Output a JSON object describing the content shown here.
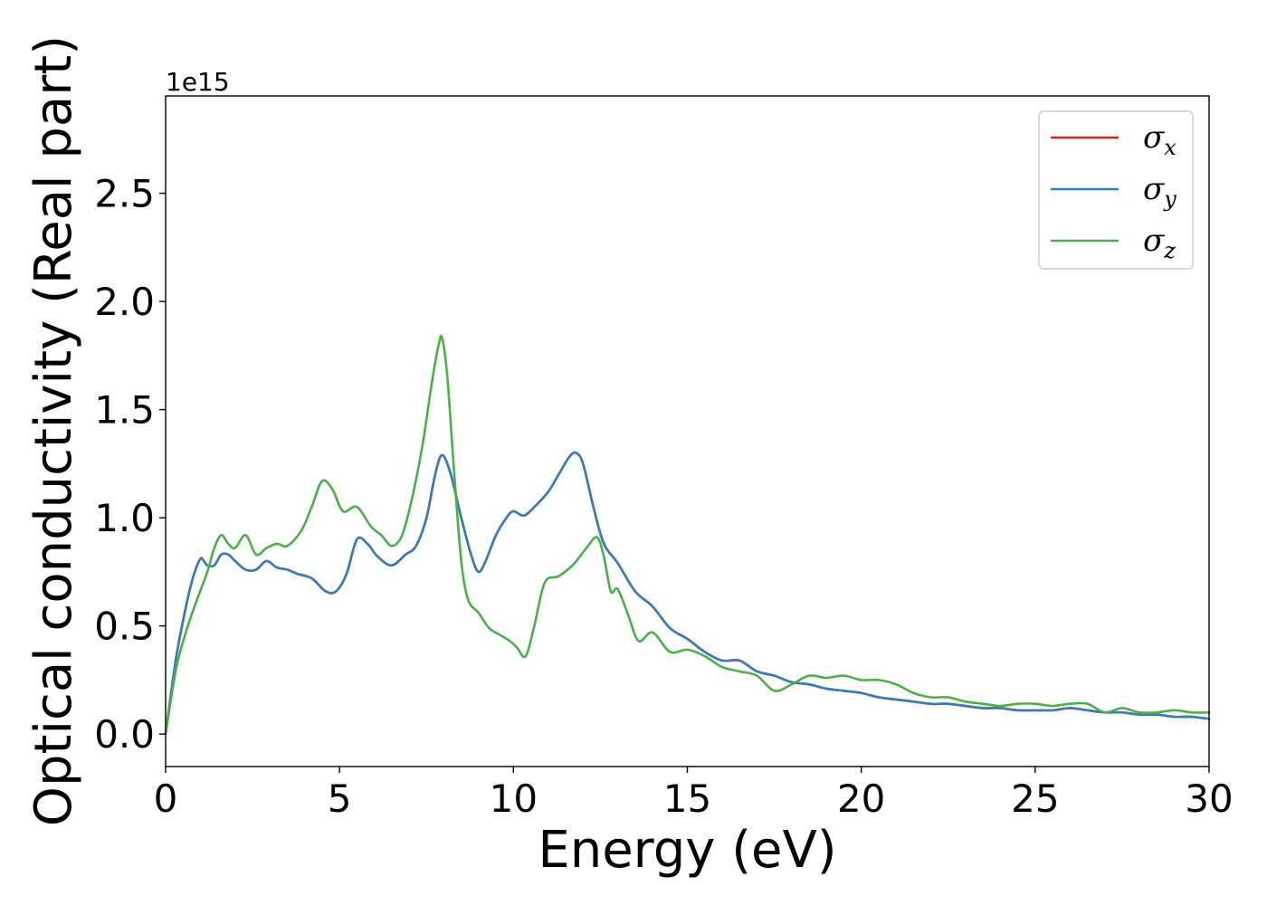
{
  "chart_data": {
    "type": "line",
    "title": "",
    "xlabel": "Energy (eV)",
    "ylabel": "Optical conductivity (Real part)",
    "y_offset_text": "1e15",
    "xlim": [
      0,
      30
    ],
    "ylim": [
      -0.15,
      2.95
    ],
    "x_ticks": [
      0,
      5,
      10,
      15,
      20,
      25,
      30
    ],
    "x_tick_labels": [
      "0",
      "5",
      "10",
      "15",
      "20",
      "25",
      "30"
    ],
    "y_ticks": [
      0.0,
      0.5,
      1.0,
      1.5,
      2.0,
      2.5
    ],
    "y_tick_labels": [
      "0.0",
      "0.5",
      "1.0",
      "1.5",
      "2.0",
      "2.5"
    ],
    "grid": false,
    "legend_position": "top-right",
    "series": [
      {
        "name": "σx",
        "label_base": "σ",
        "label_sub": "x",
        "color": "#e41a1c",
        "x": [
          0,
          0.3,
          0.6,
          0.8,
          1.0,
          1.1,
          1.2,
          1.4,
          1.6,
          1.8,
          2.0,
          2.3,
          2.6,
          2.9,
          3.2,
          3.5,
          3.8,
          4.2,
          4.6,
          4.9,
          5.2,
          5.5,
          5.8,
          6.1,
          6.5,
          6.9,
          7.2,
          7.5,
          7.75,
          7.95,
          8.2,
          8.5,
          8.8,
          9.0,
          9.2,
          9.5,
          9.8,
          10.0,
          10.3,
          10.6,
          11.0,
          11.3,
          11.6,
          11.8,
          12.0,
          12.3,
          12.6,
          13.0,
          13.5,
          14.0,
          14.5,
          15.0,
          15.5,
          16.0,
          16.5,
          17.0,
          17.5,
          18.0,
          18.5,
          19.0,
          19.5,
          20.0,
          20.5,
          21.0,
          21.5,
          22.0,
          22.5,
          23.0,
          23.5,
          24.0,
          24.5,
          25.0,
          25.5,
          26.0,
          26.5,
          27.0,
          27.5,
          28.0,
          28.5,
          29.0,
          29.5,
          30.0
        ],
        "values": [
          0,
          0.35,
          0.6,
          0.73,
          0.81,
          0.8,
          0.78,
          0.78,
          0.83,
          0.83,
          0.8,
          0.76,
          0.76,
          0.8,
          0.77,
          0.76,
          0.74,
          0.72,
          0.66,
          0.66,
          0.74,
          0.9,
          0.88,
          0.82,
          0.78,
          0.83,
          0.87,
          1.0,
          1.2,
          1.29,
          1.2,
          1.0,
          0.82,
          0.75,
          0.8,
          0.92,
          1.0,
          1.03,
          1.01,
          1.05,
          1.12,
          1.2,
          1.28,
          1.3,
          1.25,
          1.05,
          0.88,
          0.79,
          0.66,
          0.59,
          0.49,
          0.44,
          0.38,
          0.34,
          0.34,
          0.29,
          0.27,
          0.24,
          0.23,
          0.21,
          0.2,
          0.19,
          0.17,
          0.16,
          0.15,
          0.14,
          0.14,
          0.13,
          0.12,
          0.12,
          0.11,
          0.11,
          0.11,
          0.12,
          0.11,
          0.1,
          0.1,
          0.09,
          0.09,
          0.08,
          0.08,
          0.07
        ]
      },
      {
        "name": "σy",
        "label_base": "σ",
        "label_sub": "y",
        "color": "#377eb8",
        "x": [
          0,
          0.3,
          0.6,
          0.8,
          1.0,
          1.1,
          1.2,
          1.4,
          1.6,
          1.8,
          2.0,
          2.3,
          2.6,
          2.9,
          3.2,
          3.5,
          3.8,
          4.2,
          4.6,
          4.9,
          5.2,
          5.5,
          5.8,
          6.1,
          6.5,
          6.9,
          7.2,
          7.5,
          7.75,
          7.95,
          8.2,
          8.5,
          8.8,
          9.0,
          9.2,
          9.5,
          9.8,
          10.0,
          10.3,
          10.6,
          11.0,
          11.3,
          11.6,
          11.8,
          12.0,
          12.3,
          12.6,
          13.0,
          13.5,
          14.0,
          14.5,
          15.0,
          15.5,
          16.0,
          16.5,
          17.0,
          17.5,
          18.0,
          18.5,
          19.0,
          19.5,
          20.0,
          20.5,
          21.0,
          21.5,
          22.0,
          22.5,
          23.0,
          23.5,
          24.0,
          24.5,
          25.0,
          25.5,
          26.0,
          26.5,
          27.0,
          27.5,
          28.0,
          28.5,
          29.0,
          29.5,
          30.0
        ],
        "values": [
          0,
          0.35,
          0.6,
          0.73,
          0.81,
          0.8,
          0.78,
          0.78,
          0.83,
          0.83,
          0.8,
          0.76,
          0.76,
          0.8,
          0.77,
          0.76,
          0.74,
          0.72,
          0.66,
          0.66,
          0.74,
          0.9,
          0.88,
          0.82,
          0.78,
          0.83,
          0.87,
          1.0,
          1.2,
          1.29,
          1.2,
          1.0,
          0.82,
          0.75,
          0.8,
          0.92,
          1.0,
          1.03,
          1.01,
          1.05,
          1.12,
          1.2,
          1.28,
          1.3,
          1.25,
          1.05,
          0.88,
          0.79,
          0.66,
          0.59,
          0.49,
          0.44,
          0.38,
          0.34,
          0.34,
          0.29,
          0.27,
          0.24,
          0.23,
          0.21,
          0.2,
          0.19,
          0.17,
          0.16,
          0.15,
          0.14,
          0.14,
          0.13,
          0.12,
          0.12,
          0.11,
          0.11,
          0.11,
          0.12,
          0.11,
          0.1,
          0.1,
          0.09,
          0.09,
          0.08,
          0.08,
          0.07
        ]
      },
      {
        "name": "σz",
        "label_base": "σ",
        "label_sub": "z",
        "color": "#4daf4a",
        "x": [
          0,
          0.3,
          0.6,
          0.9,
          1.2,
          1.4,
          1.6,
          1.8,
          2.0,
          2.3,
          2.6,
          2.9,
          3.2,
          3.5,
          3.9,
          4.2,
          4.5,
          4.8,
          5.1,
          5.5,
          5.9,
          6.2,
          6.5,
          6.8,
          7.1,
          7.4,
          7.65,
          7.85,
          7.95,
          8.1,
          8.3,
          8.5,
          8.7,
          9.0,
          9.3,
          9.6,
          9.9,
          10.1,
          10.35,
          10.6,
          10.9,
          11.3,
          11.7,
          12.1,
          12.4,
          12.6,
          12.8,
          13.0,
          13.3,
          13.6,
          14.0,
          14.5,
          15.0,
          15.5,
          16.0,
          16.5,
          17.0,
          17.5,
          18.0,
          18.5,
          19.0,
          19.5,
          20.0,
          20.5,
          21.0,
          21.5,
          22.0,
          22.5,
          23.0,
          23.5,
          24.0,
          24.5,
          25.0,
          25.5,
          26.0,
          26.5,
          27.0,
          27.5,
          28.0,
          28.5,
          29.0,
          29.5,
          30.0
        ],
        "values": [
          0,
          0.3,
          0.48,
          0.62,
          0.75,
          0.86,
          0.92,
          0.88,
          0.86,
          0.92,
          0.83,
          0.86,
          0.88,
          0.87,
          0.94,
          1.05,
          1.17,
          1.13,
          1.03,
          1.05,
          0.96,
          0.92,
          0.87,
          0.92,
          1.1,
          1.35,
          1.62,
          1.8,
          1.83,
          1.65,
          1.2,
          0.8,
          0.62,
          0.56,
          0.49,
          0.46,
          0.43,
          0.4,
          0.36,
          0.5,
          0.7,
          0.73,
          0.78,
          0.86,
          0.91,
          0.82,
          0.66,
          0.67,
          0.55,
          0.43,
          0.47,
          0.38,
          0.39,
          0.36,
          0.31,
          0.29,
          0.27,
          0.2,
          0.23,
          0.27,
          0.26,
          0.27,
          0.25,
          0.25,
          0.23,
          0.19,
          0.17,
          0.17,
          0.15,
          0.14,
          0.13,
          0.14,
          0.14,
          0.13,
          0.14,
          0.14,
          0.1,
          0.12,
          0.1,
          0.1,
          0.11,
          0.1,
          0.1
        ]
      }
    ]
  }
}
